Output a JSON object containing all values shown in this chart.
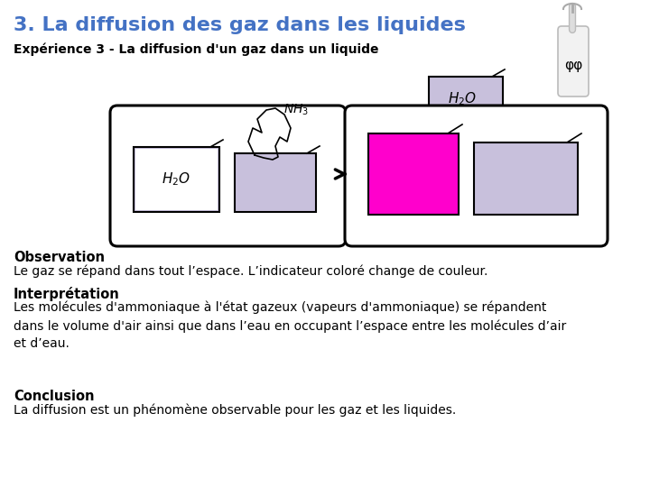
{
  "title": "3. La diffusion des gaz dans les liquides",
  "subtitle": "Expérience 3 - La diffusion d'un gaz dans un liquide",
  "title_color": "#4472C4",
  "subtitle_color": "#000000",
  "observation_bold": "Observation",
  "observation_text": "Le gaz se répand dans tout l’espace. L’indicateur coloré change de couleur.",
  "interpretation_bold": "Interprétation",
  "interpretation_text": "Les molécules d'ammoniaque à l'état gazeux (vapeurs d'ammoniaque) se répandent\ndans le volume d'air ainsi que dans l’eau en occupant l’espace entre les molécules d’air\net d’eau.",
  "conclusion_bold": "Conclusion",
  "conclusion_text": "La diffusion est un phénomène observable pour les gaz et les liquides.",
  "light_purple": "#C8C0DC",
  "magenta": "#FF00CC",
  "white": "#FFFFFF",
  "black": "#000000",
  "title_fontsize": 16,
  "subtitle_fontsize": 10,
  "body_fontsize": 10,
  "section_fontsize": 10.5,
  "fig_w": 7.2,
  "fig_h": 5.4,
  "dpi": 100
}
